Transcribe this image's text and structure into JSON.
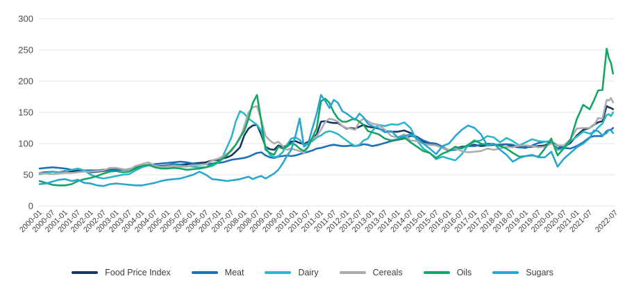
{
  "chart_data": {
    "type": "line",
    "title": "",
    "xlabel": "",
    "ylabel": "",
    "ylim": [
      0,
      300
    ],
    "y_ticks": [
      0,
      50,
      100,
      150,
      200,
      250,
      300
    ],
    "grid": "horizontal",
    "legend_position": "bottom",
    "x_unit": "months since 2000-01, monthly index values",
    "x_tick_labels": [
      "2000-01",
      "2000-07",
      "2001-01",
      "2001-07",
      "2002-01",
      "2002-07",
      "2003-01",
      "2003-07",
      "2004-01",
      "2004-07",
      "2005-01",
      "2005-07",
      "2006-01",
      "2006-07",
      "2007-01",
      "2007-07",
      "2008-01",
      "2008-07",
      "2009-01",
      "2009-07",
      "2010-01",
      "2010-07",
      "2011-01",
      "2011-07",
      "2012-01",
      "2012-07",
      "2013-01",
      "2013-07",
      "2014-01",
      "2014-07",
      "2015-01",
      "2015-07",
      "2016-01",
      "2016-07",
      "2017-01",
      "2017-07",
      "2018-01",
      "2018-07",
      "2019-01",
      "2019-07",
      "2020-01",
      "2020-07",
      "2021-01",
      "2021-07",
      "2022-07"
    ],
    "months": [
      0,
      3,
      6,
      9,
      12,
      15,
      18,
      21,
      24,
      27,
      30,
      33,
      36,
      39,
      42,
      45,
      48,
      51,
      54,
      57,
      60,
      63,
      66,
      69,
      72,
      75,
      78,
      81,
      84,
      86,
      88,
      90,
      92,
      94,
      96,
      98,
      100,
      102,
      104,
      106,
      108,
      110,
      112,
      114,
      116,
      118,
      120,
      122,
      124,
      126,
      128,
      130,
      132,
      134,
      136,
      138,
      140,
      142,
      144,
      146,
      148,
      150,
      152,
      154,
      156,
      159,
      162,
      165,
      168,
      171,
      174,
      177,
      180,
      183,
      186,
      189,
      192,
      195,
      198,
      201,
      204,
      207,
      210,
      213,
      216,
      219,
      222,
      225,
      228,
      231,
      234,
      237,
      240,
      243,
      246,
      249,
      252,
      255,
      258,
      260,
      262,
      264,
      266,
      267,
      268,
      269
    ],
    "series": [
      {
        "name": "Food Price Index",
        "color": "#16365f",
        "values": [
          53,
          54,
          55,
          54,
          56,
          55,
          57,
          56,
          54,
          55,
          56,
          58,
          59,
          58,
          58,
          62,
          64,
          66,
          64,
          64,
          65,
          67,
          66,
          67,
          68,
          69,
          70,
          73,
          74,
          76,
          78,
          81,
          87,
          94,
          113,
          124,
          129,
          130,
          114,
          95,
          91,
          90,
          97,
          94,
          97,
          103,
          104,
          101,
          99,
          103,
          107,
          115,
          135,
          136,
          134,
          133,
          133,
          128,
          124,
          125,
          124,
          127,
          130,
          127,
          126,
          124,
          120,
          119,
          119,
          121,
          117,
          110,
          102,
          100,
          98,
          93,
          89,
          92,
          95,
          96,
          98,
          96,
          97,
          98,
          98,
          99,
          95,
          94,
          94,
          95,
          96,
          97,
          102,
          92,
          94,
          101,
          113,
          122,
          125,
          130,
          134,
          136,
          160,
          158,
          157,
          155
        ]
      },
      {
        "name": "Meat",
        "color": "#1d6fb8",
        "values": [
          60,
          61,
          62,
          61,
          60,
          58,
          58,
          57,
          57,
          57,
          58,
          58,
          58,
          58,
          59,
          62,
          63,
          65,
          67,
          68,
          69,
          70,
          71,
          70,
          68,
          66,
          67,
          68,
          69,
          70,
          72,
          74,
          75,
          76,
          77,
          79,
          82,
          85,
          86,
          81,
          78,
          77,
          79,
          80,
          81,
          80,
          81,
          83,
          85,
          87,
          89,
          92,
          93,
          95,
          97,
          98,
          97,
          96,
          96,
          97,
          96,
          97,
          99,
          98,
          96,
          98,
          101,
          104,
          106,
          108,
          112,
          111,
          105,
          101,
          100,
          95,
          89,
          90,
          94,
          96,
          96,
          98,
          100,
          99,
          97,
          99,
          98,
          94,
          93,
          97,
          101,
          103,
          103,
          97,
          93,
          92,
          96,
          102,
          110,
          112,
          112,
          112,
          120,
          122,
          122,
          125
        ]
      },
      {
        "name": "Dairy",
        "color": "#2cb6c9",
        "values": [
          51,
          53,
          55,
          54,
          55,
          58,
          60,
          57,
          50,
          46,
          44,
          46,
          48,
          50,
          51,
          57,
          62,
          65,
          64,
          63,
          64,
          66,
          65,
          64,
          63,
          62,
          62,
          64,
          70,
          80,
          95,
          110,
          135,
          152,
          148,
          140,
          135,
          130,
          120,
          95,
          82,
          78,
          80,
          86,
          98,
          108,
          110,
          106,
          98,
          100,
          104,
          110,
          113,
          118,
          120,
          118,
          115,
          110,
          105,
          100,
          96,
          98,
          105,
          108,
          120,
          130,
          128,
          131,
          130,
          134,
          125,
          105,
          92,
          85,
          75,
          79,
          76,
          73,
          83,
          97,
          103,
          105,
          112,
          110,
          102,
          109,
          104,
          97,
          102,
          107,
          104,
          103,
          104,
          90,
          92,
          104,
          111,
          119,
          116,
          118,
          126,
          132,
          146,
          147,
          144,
          150
        ]
      },
      {
        "name": "Cereals",
        "color": "#aaadaf",
        "values": [
          53,
          52,
          51,
          52,
          53,
          53,
          54,
          55,
          55,
          56,
          57,
          61,
          61,
          59,
          58,
          64,
          67,
          70,
          65,
          62,
          63,
          64,
          63,
          63,
          65,
          66,
          67,
          73,
          76,
          80,
          84,
          88,
          98,
          108,
          128,
          150,
          158,
          160,
          138,
          112,
          105,
          100,
          103,
          96,
          90,
          92,
          90,
          88,
          85,
          95,
          108,
          112,
          122,
          135,
          140,
          138,
          135,
          128,
          125,
          124,
          122,
          135,
          140,
          136,
          132,
          130,
          122,
          112,
          110,
          115,
          105,
          104,
          100,
          98,
          97,
          93,
          90,
          92,
          88,
          86,
          87,
          88,
          92,
          90,
          92,
          95,
          94,
          97,
          97,
          96,
          94,
          95,
          100,
          97,
          97,
          107,
          124,
          125,
          125,
          129,
          141,
          140,
          170,
          169,
          173,
          166
        ]
      },
      {
        "name": "Oils",
        "color": "#13a563",
        "values": [
          40,
          37,
          34,
          33,
          33,
          35,
          40,
          43,
          45,
          48,
          52,
          55,
          56,
          54,
          55,
          60,
          64,
          66,
          62,
          60,
          60,
          61,
          60,
          58,
          59,
          60,
          62,
          67,
          71,
          76,
          82,
          90,
          98,
          110,
          120,
          140,
          165,
          178,
          135,
          90,
          85,
          82,
          95,
          92,
          95,
          100,
          98,
          92,
          88,
          95,
          110,
          125,
          168,
          172,
          165,
          150,
          140,
          135,
          135,
          138,
          140,
          135,
          130,
          120,
          118,
          115,
          108,
          105,
          107,
          110,
          102,
          95,
          88,
          85,
          77,
          84,
          88,
          95,
          92,
          98,
          105,
          100,
          97,
          99,
          96,
          92,
          85,
          79,
          80,
          81,
          79,
          92,
          108,
          81,
          93,
          106,
          139,
          162,
          155,
          169,
          185,
          186,
          252,
          237,
          229,
          212
        ]
      },
      {
        "name": "Sugars",
        "color": "#2aa5cf",
        "values": [
          35,
          36,
          39,
          42,
          43,
          40,
          42,
          37,
          36,
          33,
          32,
          35,
          36,
          35,
          34,
          33,
          33,
          35,
          37,
          40,
          42,
          43,
          44,
          47,
          50,
          55,
          50,
          43,
          42,
          41,
          40,
          41,
          42,
          43,
          45,
          47,
          43,
          46,
          48,
          44,
          48,
          52,
          58,
          68,
          80,
          90,
          112,
          140,
          95,
          100,
          125,
          148,
          178,
          168,
          157,
          170,
          165,
          152,
          148,
          143,
          138,
          148,
          142,
          132,
          128,
          125,
          118,
          120,
          110,
          112,
          115,
          108,
          100,
          92,
          83,
          96,
          100,
          112,
          122,
          129,
          125,
          115,
          97,
          100,
          90,
          82,
          71,
          77,
          80,
          82,
          78,
          78,
          87,
          63,
          76,
          85,
          94,
          100,
          109,
          121,
          120,
          113,
          117,
          122,
          121,
          117
        ]
      }
    ]
  }
}
